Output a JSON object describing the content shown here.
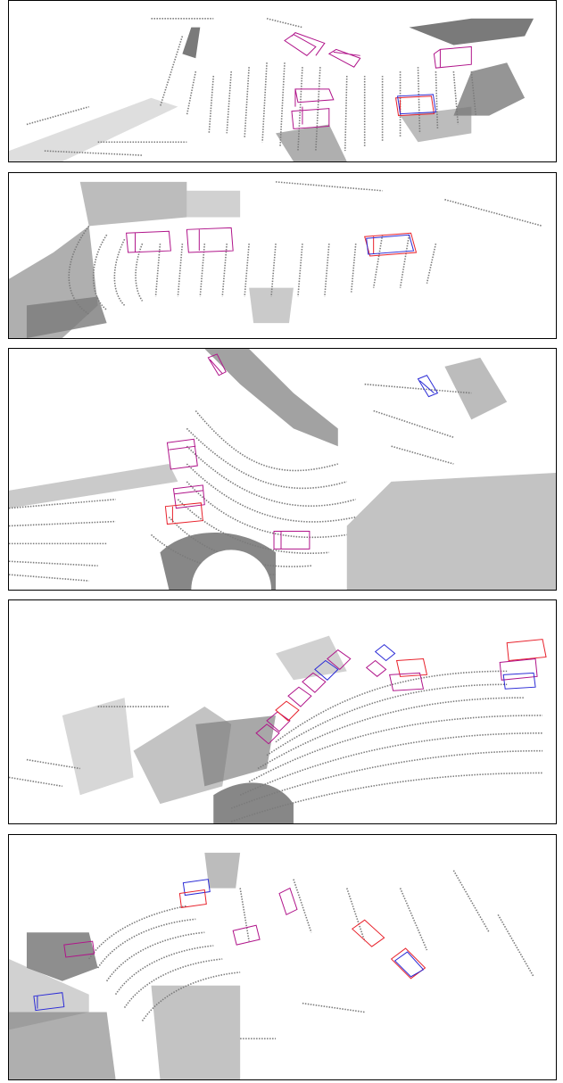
{
  "colors": {
    "background": "#ffffff",
    "points": "#7a7a7a",
    "border": "#000000",
    "ground_truth_box": "#e8212b",
    "prediction_box": "#2b2bd6",
    "overlap_box": "#b0148a"
  },
  "scenes": [
    {
      "panel": 1,
      "view": "lidar-bird-eye-view",
      "box_count": 6
    },
    {
      "panel": 2,
      "view": "lidar-bird-eye-view",
      "box_count": 3
    },
    {
      "panel": 3,
      "view": "lidar-bird-eye-view",
      "box_count": 6
    },
    {
      "panel": 4,
      "view": "lidar-bird-eye-view",
      "box_count": 14
    },
    {
      "panel": 5,
      "view": "lidar-bird-eye-view",
      "box_count": 9
    }
  ]
}
